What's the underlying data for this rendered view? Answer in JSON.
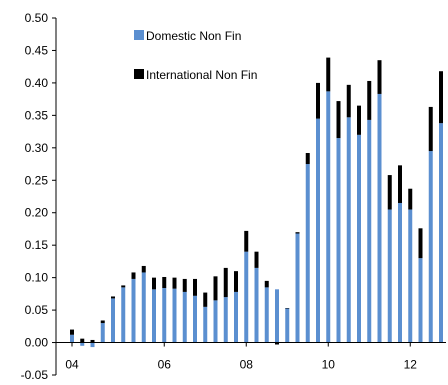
{
  "chart_data": {
    "type": "bar",
    "stacked": true,
    "title": "",
    "xlabel": "",
    "ylabel": "",
    "ylim": [
      -0.05,
      0.5
    ],
    "yticks": [
      -0.05,
      0.0,
      0.05,
      0.1,
      0.15,
      0.2,
      0.25,
      0.3,
      0.35,
      0.4,
      0.45,
      0.5
    ],
    "ytick_labels": [
      "-0.05",
      "0.00",
      "0.05",
      "0.10",
      "0.15",
      "0.20",
      "0.25",
      "0.30",
      "0.35",
      "0.40",
      "0.45",
      "0.50"
    ],
    "xticks": [
      {
        "label": "04",
        "at_bar": 0
      },
      {
        "label": "06",
        "at_bar": 9
      },
      {
        "label": "08",
        "at_bar": 17
      },
      {
        "label": "10",
        "at_bar": 25
      },
      {
        "label": "12",
        "at_bar": 33
      }
    ],
    "legend_position": "top-center",
    "series": [
      {
        "name": "Domestic Non Fin",
        "color": "#5b8fd0",
        "values": [
          0.012,
          -0.005,
          -0.007,
          0.03,
          0.068,
          0.085,
          0.098,
          0.108,
          0.082,
          0.084,
          0.083,
          0.078,
          0.072,
          0.055,
          0.065,
          0.07,
          0.078,
          0.14,
          0.115,
          0.085,
          0.082,
          0.053,
          0.168,
          0.275,
          0.345,
          0.387,
          0.315,
          0.347,
          0.32,
          0.343,
          0.383,
          0.205,
          0.215,
          0.205,
          0.13,
          0.295,
          0.338
        ]
      },
      {
        "name": "International Non Fin",
        "color": "#000000",
        "values": [
          0.008,
          0.006,
          0.004,
          0.004,
          0.003,
          0.003,
          0.01,
          0.01,
          0.018,
          0.017,
          0.017,
          0.02,
          0.026,
          0.022,
          0.037,
          0.045,
          0.032,
          0.032,
          0.025,
          0.01,
          -0.003,
          0.0,
          0.002,
          0.017,
          0.055,
          0.052,
          0.057,
          0.05,
          0.045,
          0.06,
          0.052,
          0.053,
          0.058,
          0.032,
          0.046,
          0.068,
          0.08
        ]
      }
    ]
  }
}
